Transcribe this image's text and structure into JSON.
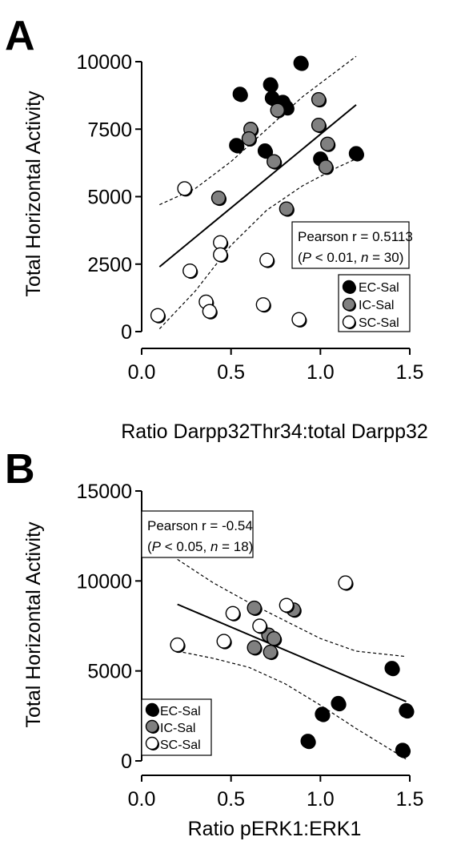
{
  "colors": {
    "EC": "#000000",
    "IC": "#808080",
    "SC": "#ffffff",
    "stroke": "#000000"
  },
  "chart_data": [
    {
      "type": "scatter",
      "panel_label": "A",
      "xlabel": "Ratio Darpp32Thr34:total Darpp32",
      "ylabel": "Total Horizontal Activity",
      "xlim": [
        0.0,
        1.5
      ],
      "ylim": [
        0,
        10000
      ],
      "xticks": [
        "0.0",
        "0.5",
        "1.0",
        "1.5"
      ],
      "yticks": [
        "0",
        "2500",
        "5000",
        "7500",
        "10000"
      ],
      "stat_box": {
        "line1": "Pearson r = 0.5113",
        "line2_parts": [
          "(",
          "P",
          " < 0.01, ",
          "n",
          " = 30)"
        ]
      },
      "legend": [
        "EC-Sal",
        "IC-Sal",
        "SC-Sal"
      ],
      "legend_position": "lower-right",
      "fit_line": {
        "x": [
          0.1,
          1.2
        ],
        "y": [
          2400,
          8400
        ]
      },
      "ci_upper": {
        "x": [
          0.1,
          0.3,
          0.5,
          0.7,
          0.9,
          1.1,
          1.2
        ],
        "y": [
          4700,
          5300,
          6300,
          7500,
          8700,
          9700,
          10200
        ]
      },
      "ci_lower": {
        "x": [
          0.1,
          0.3,
          0.5,
          0.7,
          0.9,
          1.1,
          1.2
        ],
        "y": [
          100,
          1500,
          3200,
          4500,
          5400,
          6100,
          6400
        ]
      },
      "series": [
        {
          "name": "EC-Sal",
          "points": [
            [
              0.89,
              9950
            ],
            [
              0.72,
              9150
            ],
            [
              0.55,
              8800
            ],
            [
              0.73,
              8650
            ],
            [
              0.79,
              8500
            ],
            [
              0.81,
              8300
            ],
            [
              0.53,
              6900
            ],
            [
              0.69,
              6700
            ],
            [
              1.0,
              6400
            ],
            [
              1.2,
              6600
            ]
          ]
        },
        {
          "name": "IC-Sal",
          "points": [
            [
              0.99,
              8600
            ],
            [
              0.76,
              8200
            ],
            [
              0.61,
              7500
            ],
            [
              0.99,
              7650
            ],
            [
              1.04,
              6950
            ],
            [
              0.6,
              7150
            ],
            [
              0.74,
              6300
            ],
            [
              1.03,
              6100
            ],
            [
              0.43,
              4950
            ],
            [
              0.81,
              4550
            ]
          ]
        },
        {
          "name": "SC-Sal",
          "points": [
            [
              0.24,
              5300
            ],
            [
              0.44,
              3300
            ],
            [
              0.44,
              2850
            ],
            [
              0.27,
              2250
            ],
            [
              0.7,
              2650
            ],
            [
              0.36,
              1100
            ],
            [
              0.38,
              750
            ],
            [
              0.09,
              600
            ],
            [
              0.68,
              1000
            ],
            [
              0.88,
              450
            ]
          ]
        }
      ]
    },
    {
      "type": "scatter",
      "panel_label": "B",
      "xlabel": "Ratio pERK1:ERK1",
      "ylabel": "Total Horizontal Activity",
      "xlim": [
        0.0,
        1.5
      ],
      "ylim": [
        0,
        15000
      ],
      "xticks": [
        "0.0",
        "0.5",
        "1.0",
        "1.5"
      ],
      "yticks": [
        "0",
        "5000",
        "10000",
        "15000"
      ],
      "stat_box": {
        "line1": "Pearson r = -0.54",
        "line2_parts": [
          "(",
          "P",
          " < 0.05, ",
          "n",
          " = 18)"
        ]
      },
      "legend": [
        "EC-Sal",
        "IC-Sal",
        "SC-Sal"
      ],
      "legend_position": "lower-left",
      "fit_line": {
        "x": [
          0.2,
          1.48
        ],
        "y": [
          8700,
          3300
        ]
      },
      "ci_upper": {
        "x": [
          0.2,
          0.4,
          0.6,
          0.8,
          1.0,
          1.2,
          1.48
        ],
        "y": [
          11200,
          9900,
          8800,
          7800,
          6800,
          6100,
          5800
        ]
      },
      "ci_lower": {
        "x": [
          0.2,
          0.4,
          0.6,
          0.8,
          1.0,
          1.2,
          1.48
        ],
        "y": [
          6100,
          5700,
          5200,
          4300,
          3100,
          1800,
          100
        ]
      },
      "series": [
        {
          "name": "EC-Sal",
          "points": [
            [
              1.4,
              5150
            ],
            [
              1.1,
              3200
            ],
            [
              1.01,
              2600
            ],
            [
              1.48,
              2800
            ],
            [
              0.93,
              1100
            ],
            [
              1.46,
              600
            ]
          ]
        },
        {
          "name": "IC-Sal",
          "points": [
            [
              0.63,
              8500
            ],
            [
              0.85,
              8400
            ],
            [
              0.71,
              7000
            ],
            [
              0.74,
              6800
            ],
            [
              0.63,
              6300
            ],
            [
              0.72,
              6050
            ]
          ]
        },
        {
          "name": "SC-Sal",
          "points": [
            [
              1.14,
              9900
            ],
            [
              0.81,
              8650
            ],
            [
              0.51,
              8200
            ],
            [
              0.66,
              7500
            ],
            [
              0.46,
              6650
            ],
            [
              0.2,
              6450
            ]
          ]
        }
      ]
    }
  ]
}
